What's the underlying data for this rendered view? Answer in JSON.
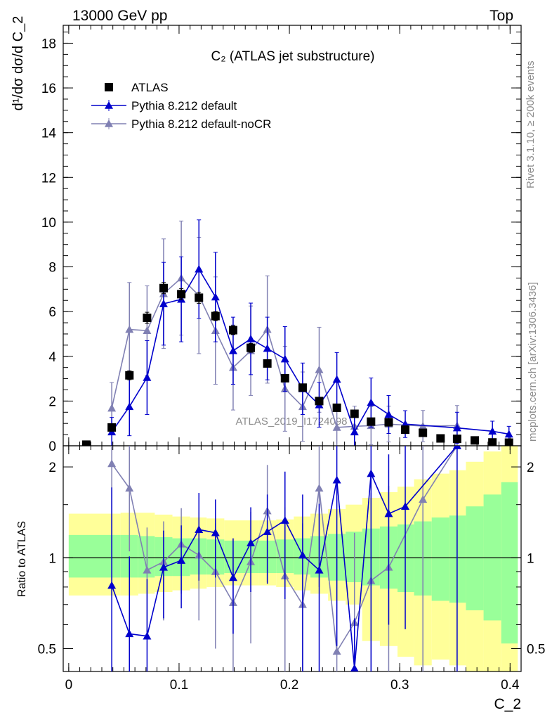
{
  "header": {
    "left": "13000 GeV pp",
    "right": "Top"
  },
  "side_text": {
    "rivet": "Rivet 3.1.10, ≥ 200k events",
    "mcplots": "mcplots.cern.ch [arXiv:1306.3436]"
  },
  "colors": {
    "data": "#000000",
    "pythia_default": "#0000cc",
    "pythia_nocr": "#8080b3",
    "band_inner": "#99ff99",
    "band_outer": "#ffff99"
  },
  "chart_data": [
    {
      "type": "scatter",
      "title": "C₂ (ATLAS jet substructure)",
      "analysis_label": "ATLAS_2019_I1724098",
      "ylabel": "d¹/dσ dσ/d C_2",
      "xlim": [
        -0.005,
        0.41
      ],
      "ylim": [
        0,
        18.8
      ],
      "x_ticks": [
        "0",
        "0.1",
        "0.2",
        "0.3",
        "0.4"
      ],
      "y_ticks": [
        "0",
        "2",
        "4",
        "6",
        "8",
        "10",
        "12",
        "14",
        "16",
        "18"
      ],
      "legend_placement": "top-left",
      "series": [
        {
          "name": "ATLAS",
          "marker": "square",
          "x": [
            0.016,
            0.039,
            0.055,
            0.071,
            0.086,
            0.102,
            0.118,
            0.133,
            0.149,
            0.165,
            0.18,
            0.196,
            0.212,
            0.227,
            0.243,
            0.259,
            0.274,
            0.29,
            0.305,
            0.321,
            0.337,
            0.352,
            0.368,
            0.384,
            0.399
          ],
          "y": [
            0.05,
            0.82,
            3.15,
            5.72,
            7.05,
            6.78,
            6.62,
            5.8,
            5.17,
            4.38,
            3.68,
            3.02,
            2.6,
            2.0,
            1.7,
            1.43,
            1.08,
            1.05,
            0.72,
            0.58,
            0.33,
            0.31,
            0.24,
            0.15,
            0.14
          ],
          "yerr": [
            0.02,
            0.1,
            0.2,
            0.25,
            0.25,
            0.25,
            0.25,
            0.2,
            0.2,
            0.2,
            0.15,
            0.15,
            0.15,
            0.1,
            0.1,
            0.1,
            0.08,
            0.08,
            0.06,
            0.06,
            0.04,
            0.04,
            0.03,
            0.03,
            0.03
          ]
        },
        {
          "name": "Pythia 8.212 default",
          "marker": "triangle",
          "x": [
            0.039,
            0.055,
            0.071,
            0.086,
            0.102,
            0.118,
            0.133,
            0.149,
            0.165,
            0.18,
            0.196,
            0.212,
            0.227,
            0.243,
            0.259,
            0.274,
            0.29,
            0.305,
            0.352,
            0.384,
            0.399
          ],
          "y": [
            0.62,
            1.75,
            3.05,
            6.35,
            6.55,
            7.9,
            6.65,
            4.25,
            4.78,
            4.35,
            3.88,
            2.55,
            1.83,
            2.97,
            0.62,
            1.93,
            1.4,
            0.97,
            0.8,
            0.65,
            0.52
          ],
          "yerr": [
            0.65,
            1.3,
            1.65,
            1.85,
            1.9,
            2.2,
            2.0,
            1.5,
            1.6,
            1.4,
            1.45,
            1.15,
            1.0,
            1.2,
            0.7,
            1.1,
            0.85,
            0.6,
            0.7,
            0.45,
            0.35
          ]
        },
        {
          "name": "Pythia 8.212 default-noCR",
          "marker": "triangle",
          "x": [
            0.039,
            0.055,
            0.071,
            0.086,
            0.102,
            0.118,
            0.133,
            0.149,
            0.165,
            0.18,
            0.196,
            0.212,
            0.227,
            0.243,
            0.259,
            0.274,
            0.29,
            0.321,
            0.352
          ],
          "y": [
            1.68,
            5.2,
            5.15,
            6.8,
            7.5,
            6.72,
            5.15,
            3.5,
            4.25,
            5.2,
            2.55,
            1.75,
            3.4,
            0.82,
            0.87,
            0.9,
            0.97,
            0.88,
            0.9
          ],
          "yerr": [
            1.15,
            2.1,
            2.0,
            2.45,
            2.55,
            2.6,
            2.4,
            1.9,
            2.0,
            2.4,
            1.9,
            1.55,
            1.9,
            0.9,
            0.9,
            0.85,
            0.8,
            0.7,
            0.9
          ]
        }
      ]
    },
    {
      "type": "scatter",
      "ylabel": "Ratio to ATLAS",
      "xlabel": "C_2",
      "scale": "log",
      "xlim": [
        -0.005,
        0.41
      ],
      "ylim": [
        0.42,
        2.35
      ],
      "x_ticks": [
        "0",
        "0.1",
        "0.2",
        "0.3",
        "0.4"
      ],
      "y_ticks": [
        "0.5",
        "1",
        "2"
      ],
      "reference_line": 1,
      "band_edges": [
        0.0,
        0.047,
        0.063,
        0.078,
        0.094,
        0.11,
        0.125,
        0.141,
        0.157,
        0.172,
        0.188,
        0.204,
        0.219,
        0.235,
        0.251,
        0.266,
        0.282,
        0.298,
        0.313,
        0.329,
        0.345,
        0.36,
        0.376,
        0.392,
        0.407
      ],
      "band_inner_low": [
        0.86,
        0.86,
        0.86,
        0.87,
        0.87,
        0.88,
        0.88,
        0.89,
        0.89,
        0.89,
        0.89,
        0.88,
        0.86,
        0.84,
        0.83,
        0.81,
        0.79,
        0.77,
        0.75,
        0.72,
        0.71,
        0.67,
        0.62,
        0.52
      ],
      "band_inner_high": [
        1.19,
        1.19,
        1.18,
        1.17,
        1.16,
        1.16,
        1.15,
        1.14,
        1.14,
        1.14,
        1.15,
        1.16,
        1.18,
        1.2,
        1.22,
        1.25,
        1.27,
        1.29,
        1.32,
        1.36,
        1.38,
        1.48,
        1.62,
        1.78
      ],
      "band_outer_low": [
        0.75,
        0.75,
        0.76,
        0.77,
        0.78,
        0.79,
        0.8,
        0.81,
        0.81,
        0.81,
        0.8,
        0.78,
        0.76,
        0.72,
        0.7,
        0.53,
        0.51,
        0.47,
        0.44,
        0.46,
        0.44,
        0.42,
        0.42,
        0.42
      ],
      "band_outer_high": [
        1.4,
        1.41,
        1.41,
        1.39,
        1.37,
        1.36,
        1.35,
        1.33,
        1.33,
        1.33,
        1.34,
        1.37,
        1.4,
        1.45,
        1.5,
        1.58,
        1.65,
        1.72,
        1.82,
        1.9,
        1.95,
        2.08,
        2.25,
        2.35
      ],
      "series": [
        {
          "name": "Pythia 8.212 default",
          "x": [
            0.039,
            0.055,
            0.071,
            0.086,
            0.102,
            0.118,
            0.133,
            0.149,
            0.165,
            0.18,
            0.196,
            0.212,
            0.227,
            0.243,
            0.259,
            0.274,
            0.29,
            0.305,
            0.352
          ],
          "y": [
            0.81,
            0.56,
            0.55,
            0.93,
            0.98,
            1.24,
            1.21,
            0.86,
            1.12,
            1.22,
            1.33,
            1.02,
            0.91,
            1.81,
            0.43,
            1.9,
            1.4,
            1.48,
            2.35
          ],
          "err_low": [
            0.95,
            0.45,
            0.3,
            0.3,
            0.3,
            0.4,
            0.35,
            0.3,
            0.35,
            0.4,
            0.6,
            0.6,
            0.6,
            1.3,
            0.2,
            1.5,
            0.8,
            0.9,
            2.0
          ],
          "err_high": [
            0.9,
            0.45,
            0.3,
            0.3,
            0.3,
            0.4,
            0.35,
            0.3,
            0.35,
            0.4,
            0.6,
            0.6,
            0.6,
            1.3,
            0.2,
            1.5,
            0.8,
            0.9,
            2.0
          ]
        },
        {
          "name": "Pythia 8.212 default-noCR",
          "x": [
            0.039,
            0.055,
            0.071,
            0.086,
            0.102,
            0.118,
            0.133,
            0.149,
            0.165,
            0.18,
            0.196,
            0.212,
            0.227,
            0.243,
            0.259,
            0.274,
            0.29,
            0.321,
            0.352
          ],
          "y": [
            2.05,
            1.7,
            0.91,
            0.97,
            1.11,
            1.02,
            0.9,
            0.71,
            0.97,
            1.43,
            0.87,
            0.7,
            1.7,
            0.49,
            0.61,
            0.84,
            0.93,
            1.56,
            2.35
          ],
          "err_low": [
            1.3,
            0.65,
            0.35,
            0.35,
            0.35,
            0.4,
            0.4,
            0.35,
            0.45,
            0.6,
            0.6,
            0.6,
            0.9,
            0.5,
            0.6,
            0.8,
            0.8,
            1.2,
            2.0
          ],
          "err_high": [
            1.3,
            0.65,
            0.35,
            0.35,
            0.35,
            0.4,
            0.4,
            0.35,
            0.45,
            0.6,
            0.6,
            0.6,
            0.9,
            0.5,
            0.6,
            0.8,
            0.8,
            1.2,
            2.0
          ]
        }
      ]
    }
  ]
}
